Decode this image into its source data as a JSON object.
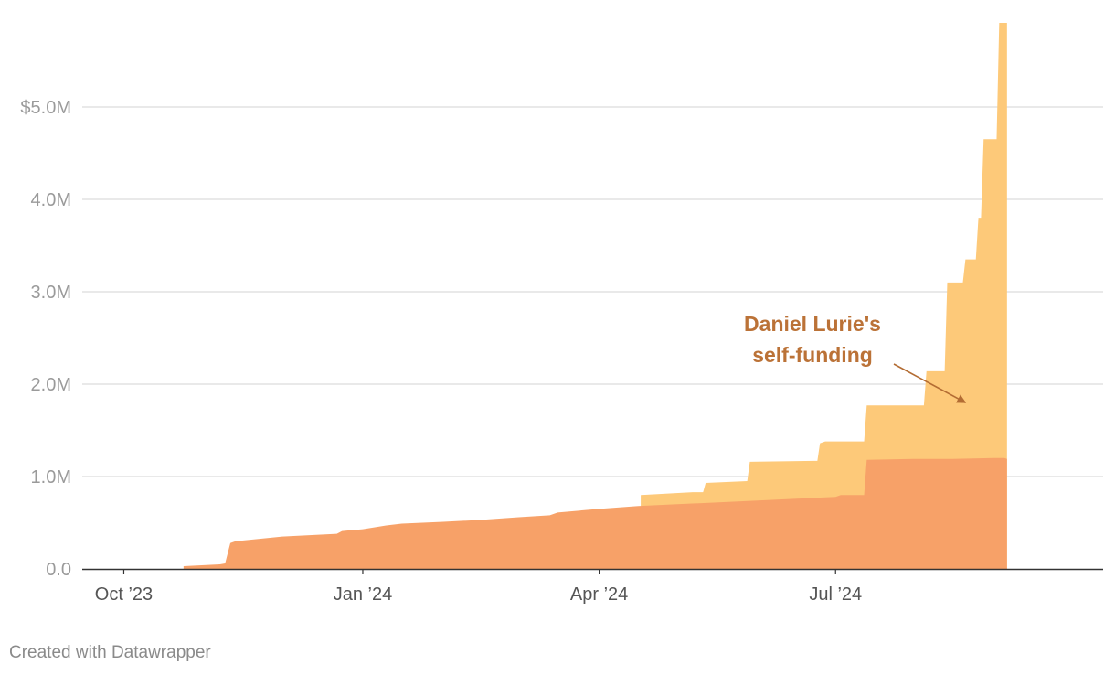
{
  "chart_data": {
    "type": "area",
    "stacked": true,
    "x_axis": {
      "ticks": [
        {
          "label": "Oct ’23",
          "date": "2023-10-01"
        },
        {
          "label": "Jan ’24",
          "date": "2024-01-01"
        },
        {
          "label": "Apr ’24",
          "date": "2024-04-01"
        },
        {
          "label": "Jul ’24",
          "date": "2024-07-01"
        }
      ],
      "range": [
        "2023-09-15",
        "2024-10-12"
      ]
    },
    "y_axis": {
      "ticks": [
        {
          "label": "0.0",
          "value": 0
        },
        {
          "label": "1.0M",
          "value": 1000000
        },
        {
          "label": "2.0M",
          "value": 2000000
        },
        {
          "label": "3.0M",
          "value": 3000000
        },
        {
          "label": "4.0M",
          "value": 4000000
        },
        {
          "label": "$5.0M",
          "value": 5000000
        }
      ],
      "range": [
        0,
        5950000
      ]
    },
    "grid": "horizontal",
    "colors": {
      "base": "#f7a168",
      "top": "#fdc979",
      "annotation": "#bb7237",
      "grid": "#e2e2e2",
      "axis": "#333333"
    },
    "series": [
      {
        "color": "#f7a168",
        "points": [
          [
            "2023-10-24",
            0
          ],
          [
            "2023-10-24",
            30000
          ],
          [
            "2023-10-31",
            40000
          ],
          [
            "2023-11-07",
            50000
          ],
          [
            "2023-11-09",
            60000
          ],
          [
            "2023-11-11",
            280000
          ],
          [
            "2023-11-13",
            300000
          ],
          [
            "2023-11-24",
            330000
          ],
          [
            "2023-12-01",
            350000
          ],
          [
            "2023-12-15",
            370000
          ],
          [
            "2023-12-22",
            380000
          ],
          [
            "2023-12-24",
            410000
          ],
          [
            "2024-01-01",
            430000
          ],
          [
            "2024-01-10",
            470000
          ],
          [
            "2024-01-16",
            490000
          ],
          [
            "2024-02-01",
            510000
          ],
          [
            "2024-02-15",
            530000
          ],
          [
            "2024-03-01",
            560000
          ],
          [
            "2024-03-13",
            580000
          ],
          [
            "2024-03-16",
            610000
          ],
          [
            "2024-04-01",
            650000
          ],
          [
            "2024-04-16",
            680000
          ],
          [
            "2024-05-01",
            700000
          ],
          [
            "2024-05-17",
            720000
          ],
          [
            "2024-06-01",
            740000
          ],
          [
            "2024-06-16",
            760000
          ],
          [
            "2024-07-01",
            780000
          ],
          [
            "2024-07-03",
            800000
          ],
          [
            "2024-07-12",
            800000
          ],
          [
            "2024-07-13",
            1180000
          ],
          [
            "2024-07-31",
            1190000
          ],
          [
            "2024-08-15",
            1190000
          ],
          [
            "2024-08-31",
            1200000
          ],
          [
            "2024-09-04",
            1200000
          ],
          [
            "2024-09-05",
            1190000
          ],
          [
            "2024-09-05",
            0
          ]
        ]
      },
      {
        "color": "#fdc979",
        "points": [
          [
            "2024-04-17",
            0
          ],
          [
            "2024-04-17",
            800000
          ],
          [
            "2024-05-07",
            830000
          ],
          [
            "2024-05-11",
            830000
          ],
          [
            "2024-05-12",
            930000
          ],
          [
            "2024-05-28",
            950000
          ],
          [
            "2024-05-29",
            1160000
          ],
          [
            "2024-06-24",
            1170000
          ],
          [
            "2024-06-25",
            1360000
          ],
          [
            "2024-06-27",
            1380000
          ],
          [
            "2024-07-12",
            1380000
          ],
          [
            "2024-07-13",
            1770000
          ],
          [
            "2024-08-04",
            1770000
          ],
          [
            "2024-08-05",
            2140000
          ],
          [
            "2024-08-12",
            2140000
          ],
          [
            "2024-08-13",
            3100000
          ],
          [
            "2024-08-19",
            3100000
          ],
          [
            "2024-08-20",
            3350000
          ],
          [
            "2024-08-24",
            3350000
          ],
          [
            "2024-08-25",
            3800000
          ],
          [
            "2024-08-26",
            3800000
          ],
          [
            "2024-08-27",
            4650000
          ],
          [
            "2024-09-01",
            4650000
          ],
          [
            "2024-09-02",
            5910000
          ],
          [
            "2024-09-05",
            5910000
          ],
          [
            "2024-09-05",
            0
          ]
        ]
      }
    ],
    "annotation": {
      "lines": [
        "Daniel Lurie's",
        "self-funding"
      ],
      "arrow_to": {
        "date": "2024-08-20",
        "value": 1800000
      }
    }
  },
  "footer": {
    "credit": "Created with Datawrapper"
  }
}
